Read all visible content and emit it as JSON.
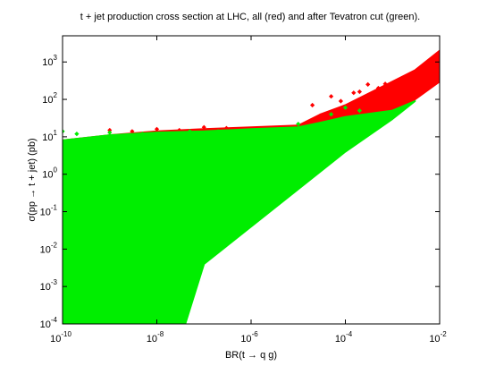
{
  "chart_data": {
    "type": "scatter",
    "title": "t + jet production cross section at LHC, all (red) and after Tevatron cut (green).",
    "xlabel": "BR(t → q g)",
    "ylabel": "σ(pp → t + jet) (pb)",
    "x_scale": "log",
    "y_scale": "log",
    "xlim": [
      1e-10,
      0.01
    ],
    "ylim": [
      0.0001,
      5000.0
    ],
    "grid": false,
    "x_ticks": [
      {
        "base": "10",
        "exp": "-10"
      },
      {
        "base": "10",
        "exp": "-8"
      },
      {
        "base": "10",
        "exp": "-6"
      },
      {
        "base": "10",
        "exp": "-4"
      },
      {
        "base": "10",
        "exp": "-2"
      }
    ],
    "y_ticks": [
      {
        "base": "10",
        "exp": "-4"
      },
      {
        "base": "10",
        "exp": "-3"
      },
      {
        "base": "10",
        "exp": "-2"
      },
      {
        "base": "10",
        "exp": "-1"
      },
      {
        "base": "10",
        "exp": "0"
      },
      {
        "base": "10",
        "exp": "1"
      },
      {
        "base": "10",
        "exp": "2"
      },
      {
        "base": "10",
        "exp": "3"
      }
    ],
    "series": [
      {
        "name": "all",
        "color": "#ff0000",
        "marker": "diamond",
        "region_outline": [
          [
            1e-10,
            8
          ],
          [
            1e-09,
            11
          ],
          [
            1e-08,
            14
          ],
          [
            1e-07,
            16
          ],
          [
            1e-06,
            18
          ],
          [
            1e-05,
            20
          ],
          [
            3e-05,
            40
          ],
          [
            0.0001,
            70
          ],
          [
            0.001,
            300
          ],
          [
            0.003,
            600
          ],
          [
            0.01,
            2000
          ],
          [
            0.01,
            300
          ],
          [
            0.003,
            100
          ],
          [
            0.001,
            50
          ],
          [
            0.0001,
            12
          ],
          [
            1e-05,
            2
          ],
          [
            1e-06,
            0.2
          ],
          [
            1e-07,
            0.02
          ],
          [
            3e-08,
            0.0001
          ],
          [
            1e-10,
            0.0001
          ]
        ],
        "outliers": [
          [
            1e-09,
            15
          ],
          [
            3e-09,
            14
          ],
          [
            1e-08,
            16
          ],
          [
            3e-08,
            15
          ],
          [
            1e-07,
            18
          ],
          [
            3e-07,
            17
          ],
          [
            2e-05,
            70
          ],
          [
            5e-05,
            120
          ],
          [
            8e-05,
            90
          ],
          [
            0.00015,
            150
          ],
          [
            0.0002,
            160
          ],
          [
            0.0003,
            250
          ],
          [
            0.0005,
            200
          ],
          [
            0.0007,
            260
          ]
        ]
      },
      {
        "name": "after Tevatron cut",
        "color": "#00ee00",
        "marker": "diamond",
        "region_outline": [
          [
            1e-10,
            8
          ],
          [
            1e-09,
            11
          ],
          [
            1e-08,
            13
          ],
          [
            1e-07,
            14
          ],
          [
            1e-06,
            16
          ],
          [
            1e-05,
            18
          ],
          [
            3e-05,
            24
          ],
          [
            0.0001,
            34
          ],
          [
            0.001,
            50
          ],
          [
            0.003,
            90
          ],
          [
            0.001,
            30
          ],
          [
            0.0001,
            4
          ],
          [
            1e-05,
            0.4
          ],
          [
            1e-06,
            0.04
          ],
          [
            1e-07,
            0.004
          ],
          [
            4e-08,
            0.0001
          ],
          [
            1e-10,
            0.0001
          ]
        ],
        "outliers": [
          [
            1e-10,
            14
          ],
          [
            2e-10,
            12
          ],
          [
            1e-09,
            13
          ],
          [
            5e-09,
            12
          ],
          [
            5e-08,
            14
          ],
          [
            2e-07,
            14
          ],
          [
            1e-05,
            22
          ],
          [
            5e-05,
            40
          ],
          [
            0.0001,
            60
          ],
          [
            0.0002,
            50
          ]
        ]
      }
    ]
  }
}
